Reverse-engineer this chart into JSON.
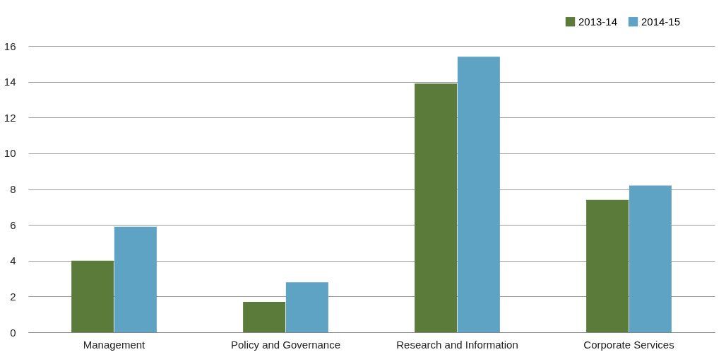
{
  "chart_data": {
    "type": "bar",
    "categories": [
      "Management",
      "Policy and Governance",
      "Research and Information",
      "Corporate Services"
    ],
    "series": [
      {
        "name": "2013-14",
        "color": "#5b7b3a",
        "values": [
          4.0,
          1.7,
          13.9,
          7.4
        ]
      },
      {
        "name": "2014-15",
        "color": "#5ea3c3",
        "values": [
          5.9,
          2.8,
          15.4,
          8.2
        ]
      }
    ],
    "ylim": [
      0,
      16
    ],
    "yticks": [
      0,
      2,
      4,
      6,
      8,
      10,
      12,
      14,
      16
    ],
    "grid": "y",
    "legend": "top right"
  }
}
